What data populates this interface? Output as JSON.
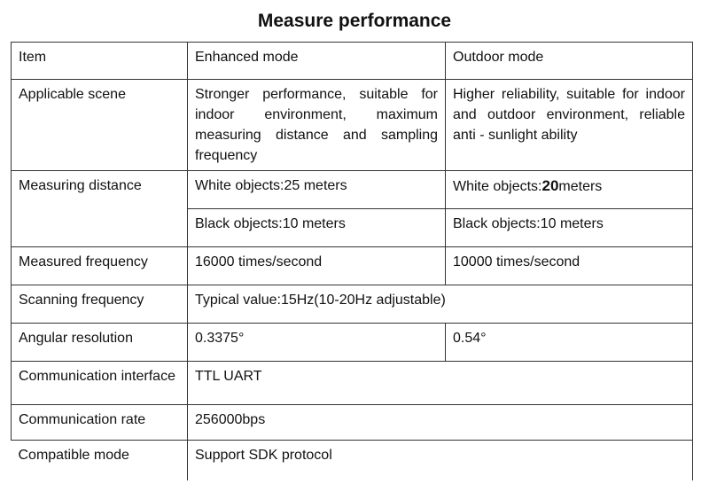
{
  "title": "Measure performance",
  "table": {
    "header": {
      "item": "Item",
      "enhanced": "Enhanced mode",
      "outdoor": "Outdoor mode"
    },
    "applicable_scene": {
      "label": "Applicable scene",
      "enhanced": "Stronger performance, suitable for indoor environment, maximum measuring distance and sampling frequency",
      "outdoor": "Higher reliability, suitable for indoor and outdoor environment, reliable anti - sunlight ability"
    },
    "measuring_distance": {
      "label": "Measuring distance",
      "enhanced_white": "White objects:25 meters",
      "outdoor_white_prefix": "White objects:",
      "outdoor_white_value": "20",
      "outdoor_white_suffix": "meters",
      "enhanced_black": "Black objects:10 meters",
      "outdoor_black": "Black objects:10 meters"
    },
    "measured_frequency": {
      "label": "Measured frequency",
      "enhanced": "16000 times/second",
      "outdoor": "10000 times/second"
    },
    "scanning_frequency": {
      "label": "Scanning frequency",
      "value": "Typical value:15Hz(10-20Hz adjustable)"
    },
    "angular_resolution": {
      "label": "Angular resolution",
      "enhanced": "0.3375°",
      "outdoor": "0.54°"
    },
    "communication_interface": {
      "label": "Communication interface",
      "value": "TTL UART"
    },
    "communication_rate": {
      "label": "Communication rate",
      "value": "256000bps"
    },
    "compatible_mode": {
      "label": "Compatible mode",
      "value": "Support SDK protocol"
    }
  }
}
